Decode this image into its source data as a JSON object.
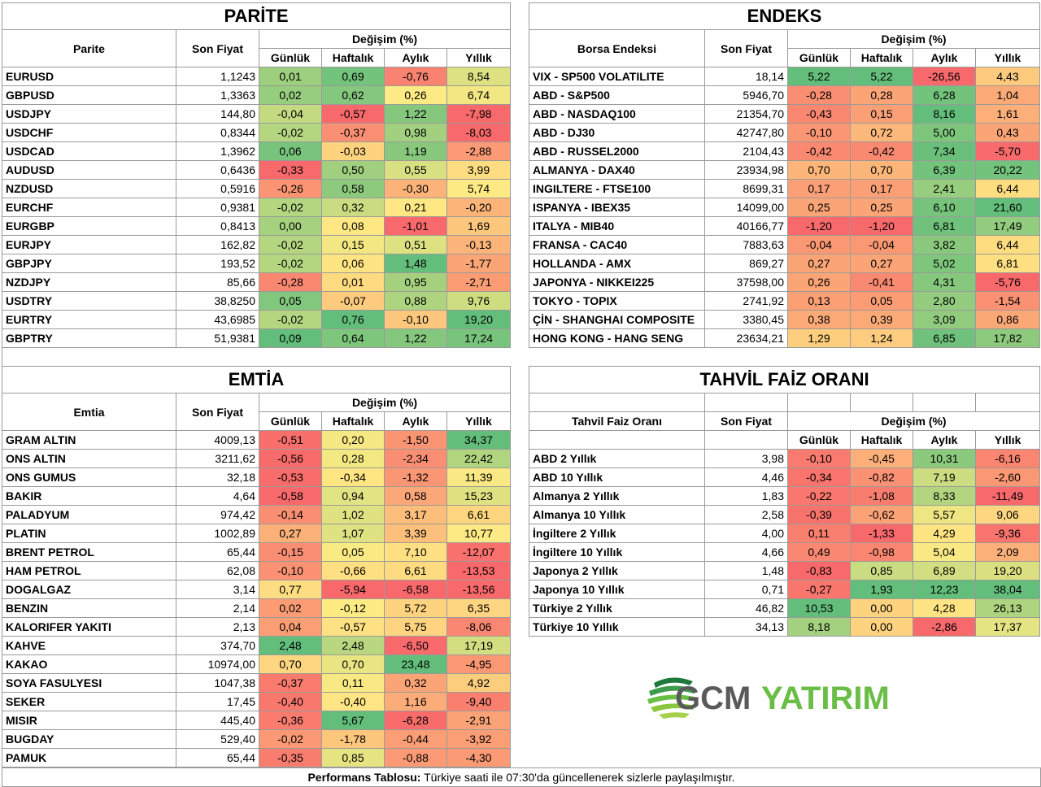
{
  "colors": {
    "green": "#63be7b",
    "yellow": "#ffeb84",
    "red": "#f8696b"
  },
  "common": {
    "son_fiyat": "Son Fiyat",
    "degisim": "Değişim (%)",
    "gunluk": "Günlük",
    "haftalik": "Haftalık",
    "aylik": "Aylık",
    "yillik": "Yıllık"
  },
  "parite": {
    "title": "PARİTE",
    "col_name": "Parite",
    "rows": [
      [
        "EURUSD",
        "1,1243",
        "0,01",
        "0,69",
        "-0,76",
        "8,54"
      ],
      [
        "GBPUSD",
        "1,3363",
        "0,02",
        "0,62",
        "0,26",
        "6,74"
      ],
      [
        "USDJPY",
        "144,80",
        "-0,04",
        "-0,57",
        "1,22",
        "-7,98"
      ],
      [
        "USDCHF",
        "0,8344",
        "-0,02",
        "-0,37",
        "0,98",
        "-8,03"
      ],
      [
        "USDCAD",
        "1,3962",
        "0,06",
        "-0,03",
        "1,19",
        "-2,88"
      ],
      [
        "AUDUSD",
        "0,6436",
        "-0,33",
        "0,50",
        "0,55",
        "3,99"
      ],
      [
        "NZDUSD",
        "0,5916",
        "-0,26",
        "0,58",
        "-0,30",
        "5,74"
      ],
      [
        "EURCHF",
        "0,9381",
        "-0,02",
        "0,32",
        "0,21",
        "-0,20"
      ],
      [
        "EURGBP",
        "0,8413",
        "0,00",
        "0,08",
        "-1,01",
        "1,69"
      ],
      [
        "EURJPY",
        "162,82",
        "-0,02",
        "0,15",
        "0,51",
        "-0,13"
      ],
      [
        "GBPJPY",
        "193,52",
        "-0,02",
        "0,06",
        "1,48",
        "-1,77"
      ],
      [
        "NZDJPY",
        "85,66",
        "-0,28",
        "0,01",
        "0,95",
        "-2,71"
      ],
      [
        "USDTRY",
        "38,8250",
        "0,05",
        "-0,07",
        "0,88",
        "9,76"
      ],
      [
        "EURTRY",
        "43,6985",
        "-0,02",
        "0,76",
        "-0,10",
        "19,20"
      ],
      [
        "GBPTRY",
        "51,9381",
        "0,09",
        "0,64",
        "1,22",
        "17,24"
      ]
    ]
  },
  "endeks": {
    "title": "ENDEKS",
    "col_name": "Borsa Endeksi",
    "rows": [
      [
        "VIX  - SP500 VOLATILITE",
        "18,14",
        "5,22",
        "5,22",
        "-26,56",
        "4,43"
      ],
      [
        "ABD - S&P500",
        "5946,70",
        "-0,28",
        "0,28",
        "6,28",
        "1,04"
      ],
      [
        "ABD - NASDAQ100",
        "21354,70",
        "-0,43",
        "0,15",
        "8,16",
        "1,61"
      ],
      [
        "ABD - DJ30",
        "42747,80",
        "-0,10",
        "0,72",
        "5,00",
        "0,43"
      ],
      [
        "ABD - RUSSEL2000",
        "2104,43",
        "-0,42",
        "-0,42",
        "7,34",
        "-5,70"
      ],
      [
        "ALMANYA - DAX40",
        "23934,98",
        "0,70",
        "0,70",
        "6,39",
        "20,22"
      ],
      [
        "INGILTERE - FTSE100",
        "8699,31",
        "0,17",
        "0,17",
        "2,41",
        "6,44"
      ],
      [
        "ISPANYA - IBEX35",
        "14099,00",
        "0,25",
        "0,25",
        "6,10",
        "21,60"
      ],
      [
        "ITALYA - MIB40",
        "40166,77",
        "-1,20",
        "-1,20",
        "6,81",
        "17,49"
      ],
      [
        "FRANSA - CAC40",
        "7883,63",
        "-0,04",
        "-0,04",
        "3,82",
        "6,44"
      ],
      [
        "HOLLANDA - AMX",
        "869,27",
        "0,27",
        "0,27",
        "5,02",
        "6,81"
      ],
      [
        "JAPONYA - NIKKEI225",
        "37598,00",
        "0,26",
        "-0,41",
        "4,31",
        "-5,76"
      ],
      [
        "TOKYO - TOPIX",
        "2741,92",
        "0,13",
        "0,05",
        "2,80",
        "-1,54"
      ],
      [
        "ÇİN - SHANGHAI COMPOSITE",
        "3380,45",
        "0,38",
        "0,39",
        "3,09",
        "0,86"
      ],
      [
        "HONG KONG - HANG SENG",
        "23634,21",
        "1,29",
        "1,24",
        "6,85",
        "17,82"
      ]
    ]
  },
  "emtia": {
    "title": "EMTİA",
    "col_name": "Emtia",
    "rows": [
      [
        "GRAM ALTIN",
        "4009,13",
        "-0,51",
        "0,20",
        "-1,50",
        "34,37"
      ],
      [
        "ONS ALTIN",
        "3211,62",
        "-0,56",
        "0,28",
        "-2,34",
        "22,42"
      ],
      [
        "ONS GUMUS",
        "32,18",
        "-0,53",
        "-0,34",
        "-1,32",
        "11,39"
      ],
      [
        "BAKIR",
        "4,64",
        "-0,58",
        "0,94",
        "0,58",
        "15,23"
      ],
      [
        "PALADYUM",
        "974,42",
        "-0,14",
        "1,02",
        "3,17",
        "6,61"
      ],
      [
        "PLATIN",
        "1002,89",
        "0,27",
        "1,07",
        "3,39",
        "10,77"
      ],
      [
        "BRENT PETROL",
        "65,44",
        "-0,15",
        "0,05",
        "7,10",
        "-12,07"
      ],
      [
        "HAM PETROL",
        "62,08",
        "-0,10",
        "-0,66",
        "6,61",
        "-13,53"
      ],
      [
        "DOGALGAZ",
        "3,14",
        "0,77",
        "-5,94",
        "-6,58",
        "-13,56"
      ],
      [
        "BENZIN",
        "2,14",
        "0,02",
        "-0,12",
        "5,72",
        "6,35"
      ],
      [
        "KALORIFER YAKITI",
        "2,13",
        "0,04",
        "-0,57",
        "5,75",
        "-8,06"
      ],
      [
        "KAHVE",
        "374,70",
        "2,48",
        "2,48",
        "-6,50",
        "17,19"
      ],
      [
        "KAKAO",
        "10974,00",
        "0,70",
        "0,70",
        "23,48",
        "-4,95"
      ],
      [
        "SOYA FASULYESI",
        "1047,38",
        "-0,37",
        "0,11",
        "0,32",
        "4,92"
      ],
      [
        "SEKER",
        "17,45",
        "-0,40",
        "-0,40",
        "1,16",
        "-9,40"
      ],
      [
        "MISIR",
        "445,40",
        "-0,36",
        "5,67",
        "-6,28",
        "-2,91"
      ],
      [
        "BUGDAY",
        "529,40",
        "-0,02",
        "-1,78",
        "-0,44",
        "-3,92"
      ],
      [
        "PAMUK",
        "65,44",
        "-0,35",
        "0,85",
        "-0,88",
        "-4,30"
      ]
    ]
  },
  "tahvil": {
    "title": "TAHVİL FAİZ ORANI",
    "col_name": "Tahvil Faiz Oranı",
    "rows": [
      [
        "ABD 2 Yıllık",
        "3,98",
        "-0,10",
        "-0,45",
        "10,31",
        "-6,16"
      ],
      [
        "ABD 10 Yıllık",
        "4,46",
        "-0,34",
        "-0,82",
        "7,19",
        "-2,60"
      ],
      [
        "Almanya 2 Yıllık",
        "1,83",
        "-0,22",
        "-1,08",
        "8,33",
        "-11,49"
      ],
      [
        "Almanya 10 Yıllık",
        "2,58",
        "-0,39",
        "-0,62",
        "5,57",
        "9,06"
      ],
      [
        "İngiltere 2 Yıllık",
        "4,00",
        "0,11",
        "-1,33",
        "4,29",
        "-9,36"
      ],
      [
        "İngiltere 10 Yıllık",
        "4,66",
        "0,49",
        "-0,98",
        "5,04",
        "2,09"
      ],
      [
        "Japonya 2 Yıllık",
        "1,48",
        "-0,83",
        "0,85",
        "6,89",
        "19,20"
      ],
      [
        "Japonya 10 Yıllık",
        "0,71",
        "-0,27",
        "1,93",
        "12,23",
        "38,04"
      ],
      [
        "Türkiye 2 Yıllık",
        "46,82",
        "10,53",
        "0,00",
        "4,28",
        "26,13"
      ],
      [
        "Türkiye 10 Yıllık",
        "34,13",
        "8,18",
        "0,00",
        "-2,86",
        "17,37"
      ]
    ]
  },
  "logo": {
    "text_gcm": "GCM",
    "text_yatirim": "YATIRIM"
  },
  "footer": {
    "bold": "Performans Tablosu:",
    "text": " Türkiye saati ile 07:30'da güncellenerek sizlerle paylaşılmıştır."
  }
}
